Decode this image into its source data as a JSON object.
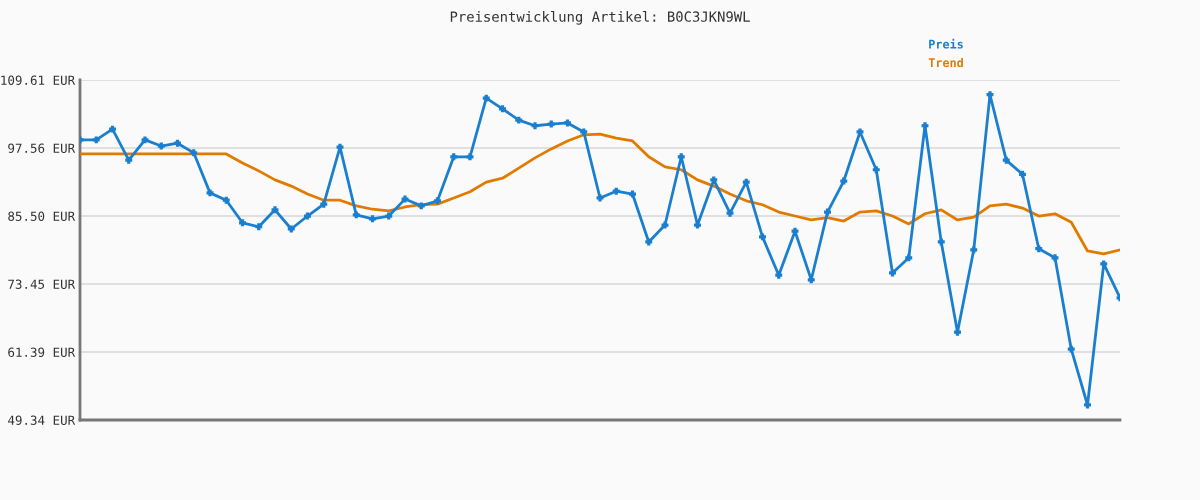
{
  "chart_data": {
    "type": "line",
    "title": "Preisentwicklung Artikel: B0C3JKN9WL",
    "categories": [
      null,
      null,
      null,
      null,
      null,
      null,
      null,
      null,
      null,
      null,
      null,
      null,
      null,
      null,
      null,
      null,
      null,
      null,
      null,
      null,
      null,
      null,
      null,
      null,
      null,
      null,
      null,
      null,
      null,
      null,
      null,
      null,
      null,
      null,
      null,
      null,
      null,
      null,
      null,
      null,
      null,
      null,
      null,
      null,
      null,
      null,
      null,
      null,
      null,
      null,
      null,
      null,
      null,
      null,
      null,
      null,
      null,
      null,
      null,
      null,
      null,
      null,
      null,
      null,
      null
    ],
    "series": [
      {
        "name": "Preis",
        "color": "#1a7fcf",
        "marker": "cross",
        "values": [
          99.0,
          99.0,
          100.9,
          95.4,
          99.0,
          97.9,
          98.4,
          96.7,
          89.6,
          88.3,
          84.3,
          83.6,
          86.6,
          83.2,
          85.5,
          87.6,
          97.7,
          85.7,
          85.0,
          85.5,
          88.5,
          87.3,
          88.2,
          96.0,
          96.0,
          106.4,
          104.5,
          102.5,
          101.5,
          101.8,
          102.0,
          100.4,
          88.7,
          89.9,
          89.4,
          80.9,
          83.9,
          96.0,
          83.9,
          91.9,
          86.0,
          91.5,
          81.8,
          75.0,
          82.8,
          74.2,
          86.2,
          91.7,
          100.4,
          93.7,
          75.4,
          78.1,
          101.5,
          80.9,
          64.9,
          79.5,
          107.0,
          95.4,
          92.9,
          79.7,
          78.1,
          61.9,
          52.0,
          77.0,
          71.0
        ]
      },
      {
        "name": "Trend",
        "color": "#e07b00",
        "marker": "none",
        "values": [
          96.5,
          96.5,
          96.5,
          96.5,
          96.5,
          96.5,
          96.5,
          96.5,
          96.5,
          96.5,
          94.9,
          93.5,
          91.9,
          90.8,
          89.4,
          88.3,
          88.3,
          87.3,
          86.7,
          86.4,
          87.1,
          87.5,
          87.6,
          88.7,
          89.8,
          91.5,
          92.2,
          94.0,
          95.8,
          97.4,
          98.8,
          99.9,
          100.0,
          99.3,
          98.8,
          96.0,
          94.2,
          93.7,
          91.9,
          90.8,
          89.4,
          88.2,
          87.5,
          86.2,
          85.5,
          84.8,
          85.2,
          84.6,
          86.2,
          86.4,
          85.5,
          84.1,
          85.9,
          86.6,
          84.8,
          85.3,
          87.3,
          87.6,
          86.9,
          85.5,
          85.9,
          84.4,
          79.3,
          78.8,
          79.5
        ]
      }
    ],
    "ylim": [
      49.34,
      109.61
    ],
    "yticks": [
      {
        "value": 49.34,
        "label": "49.34 EUR"
      },
      {
        "value": 61.39,
        "label": "61.39 EUR"
      },
      {
        "value": 73.45,
        "label": "73.45 EUR"
      },
      {
        "value": 85.5,
        "label": "85.50 EUR"
      },
      {
        "value": 97.56,
        "label": "97.56 EUR"
      },
      {
        "value": 109.61,
        "label": "109.61 EUR"
      }
    ],
    "grid": "y",
    "legend": "top right",
    "line_style": "solid"
  }
}
